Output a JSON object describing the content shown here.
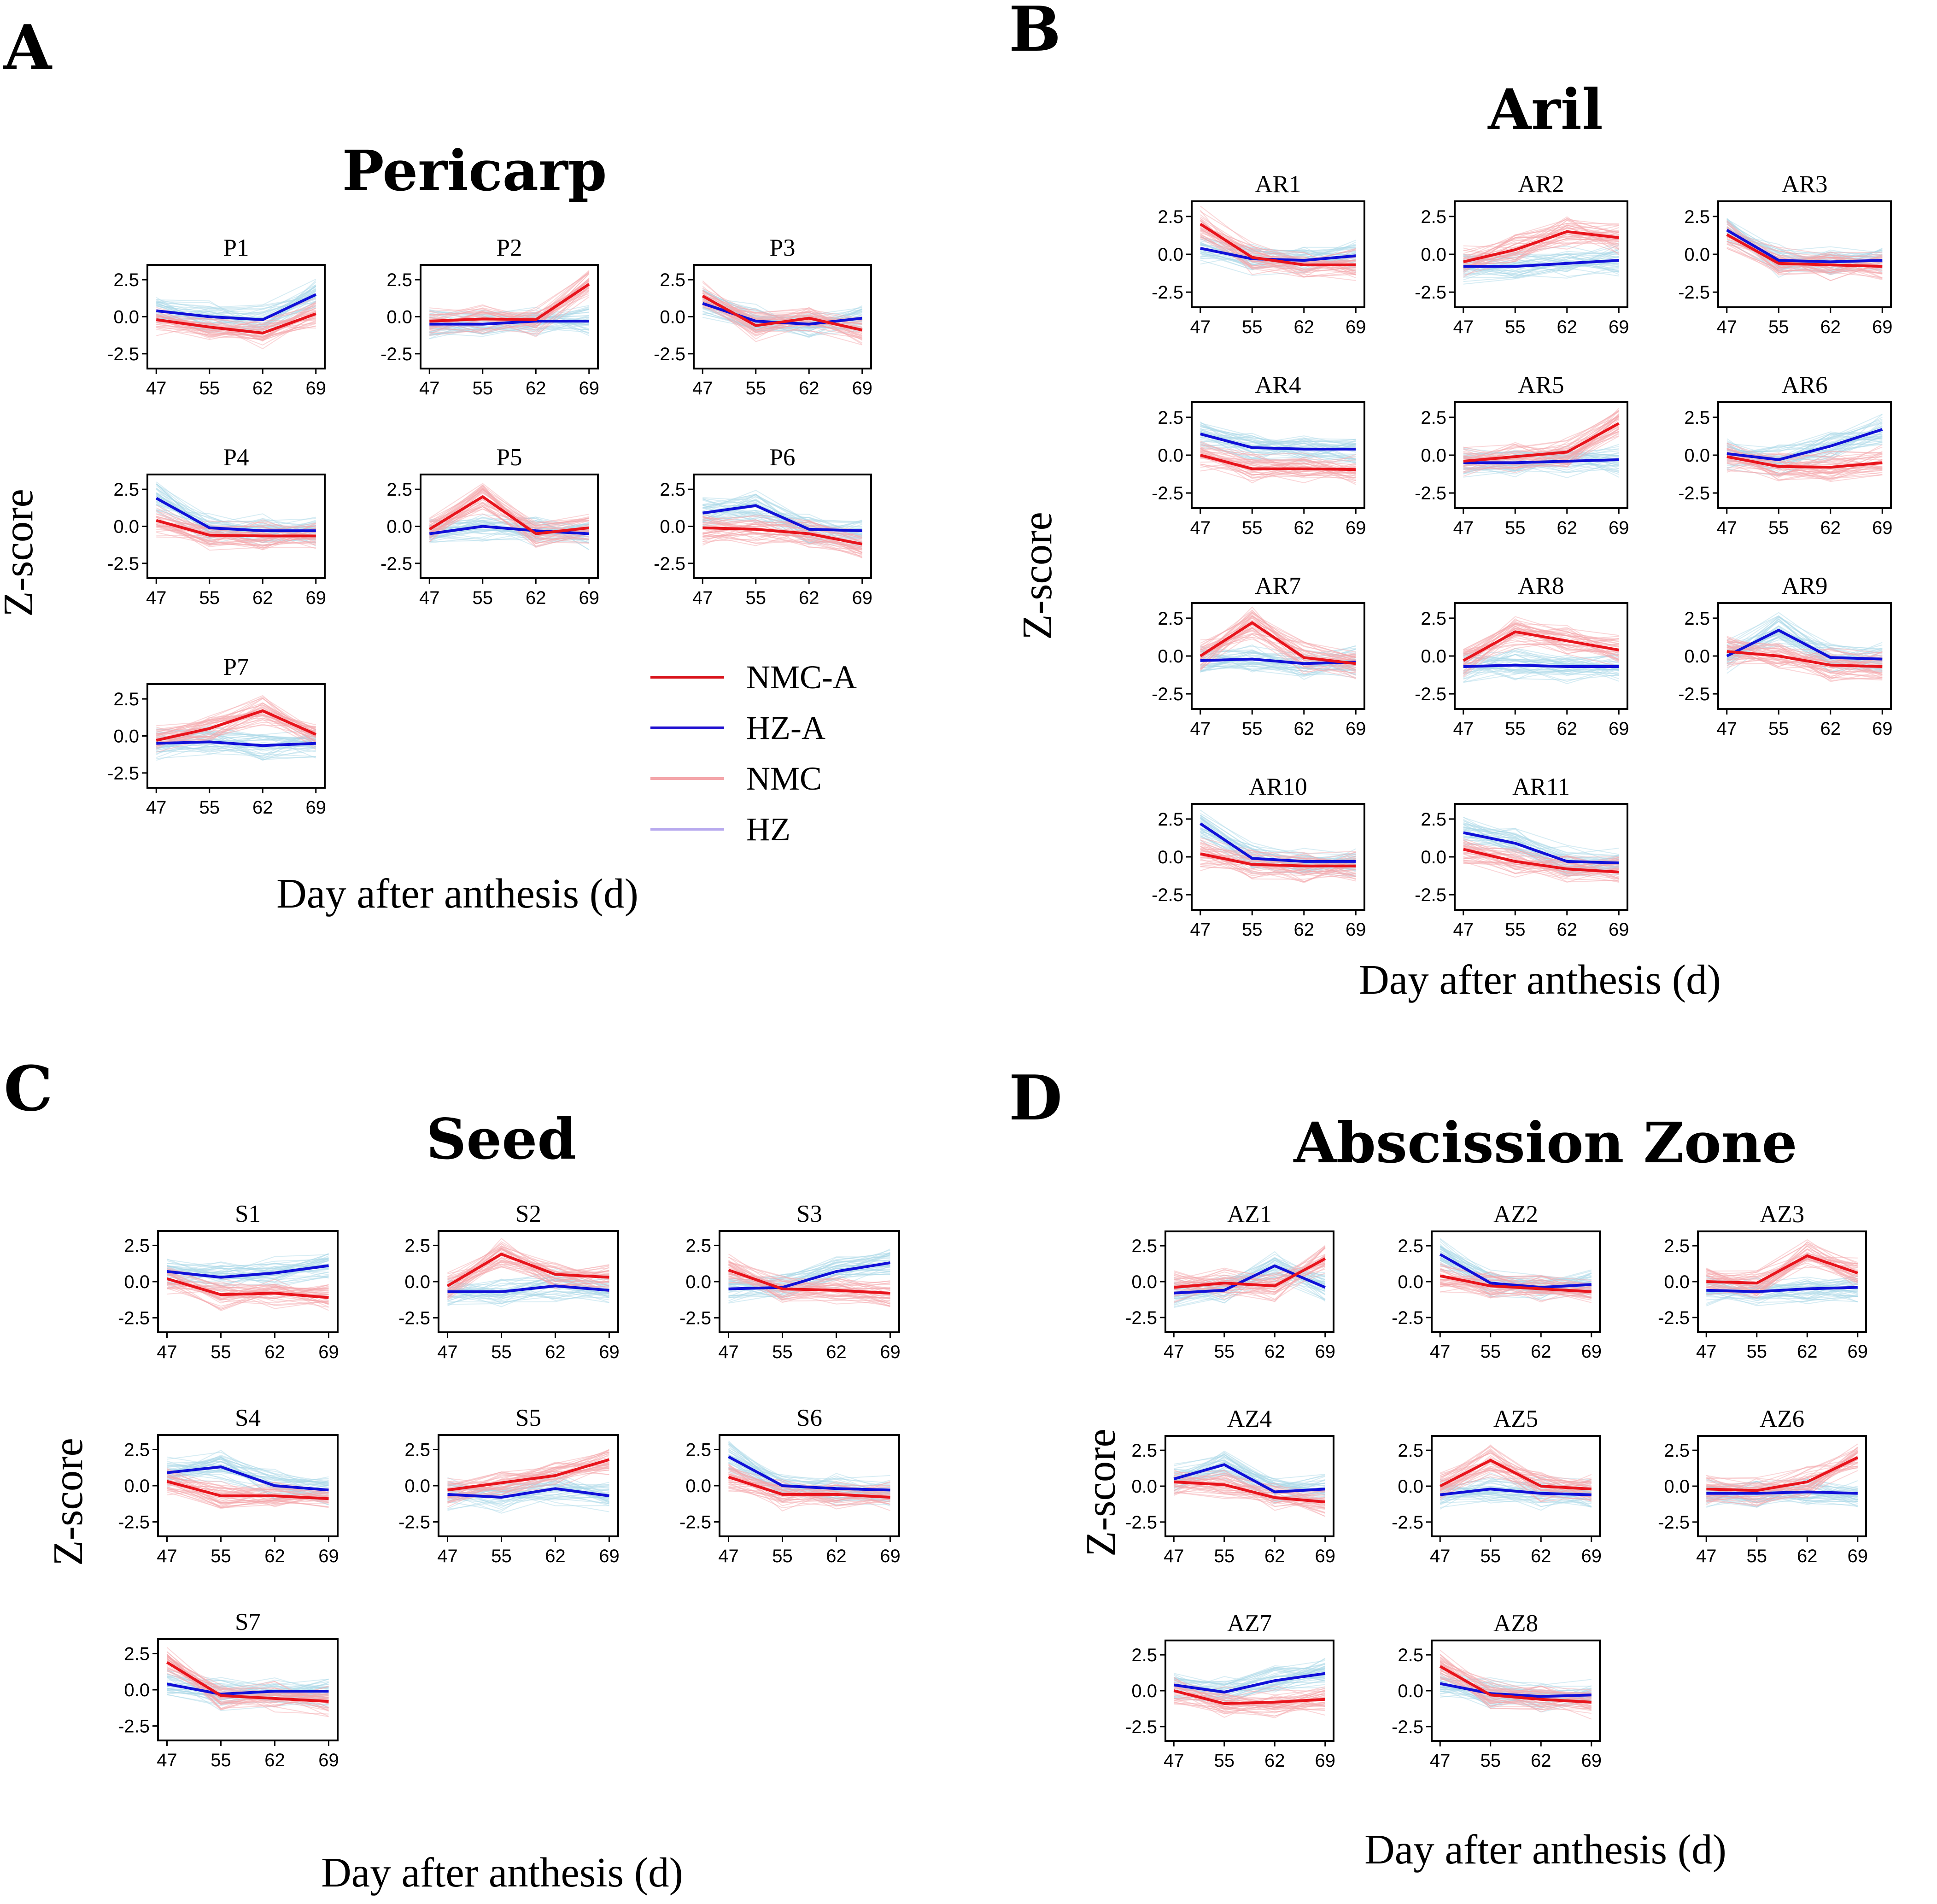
{
  "colors": {
    "nmc_a": "#e8141c",
    "hz_a": "#1010d8",
    "nmc_bundle": "#f4a6aa",
    "hz_bundle": "#a8d6e6",
    "hz_legend": "#b4a6ee"
  },
  "legend": {
    "items": [
      {
        "label": "NMC-A",
        "color": "#d9141c",
        "width": 6
      },
      {
        "label": "HZ-A",
        "color": "#2010d0",
        "width": 6
      },
      {
        "label": "NMC",
        "color": "#f4a6aa",
        "width": 6
      },
      {
        "label": "HZ",
        "color": "#b8aaee",
        "width": 6
      }
    ]
  },
  "panels": [
    {
      "letter": "A",
      "title": "Pericarp",
      "xlabel": "Day after anthesis (d)",
      "ylabel": "Z-score"
    },
    {
      "letter": "B",
      "title": "Aril",
      "xlabel": "Day after anthesis (d)",
      "ylabel": "Z-score"
    },
    {
      "letter": "C",
      "title": "Seed",
      "xlabel": "Day after anthesis (d)",
      "ylabel": "Z-score"
    },
    {
      "letter": "D",
      "title": "Abscission Zone",
      "xlabel": "Day after anthesis (d)",
      "ylabel": "Z-score"
    }
  ],
  "chart_data": {
    "type": "line",
    "x": [
      "47",
      "55",
      "62",
      "69"
    ],
    "ylim": [
      -3.5,
      3.5
    ],
    "yticks": [
      "2.5",
      "0.0",
      "-2.5"
    ],
    "ytick_values": [
      2.5,
      0,
      -2.5
    ],
    "series_names": [
      "NMC-A",
      "HZ-A"
    ],
    "panels": [
      {
        "letter": "A",
        "clusters": [
          {
            "name": "P1",
            "nmc": [
              -0.2,
              -0.7,
              -1.1,
              0.2
            ],
            "hz": [
              0.4,
              0.0,
              -0.2,
              1.5
            ]
          },
          {
            "name": "P2",
            "nmc": [
              -0.3,
              -0.15,
              -0.2,
              2.2
            ],
            "hz": [
              -0.5,
              -0.5,
              -0.3,
              -0.3
            ]
          },
          {
            "name": "P3",
            "nmc": [
              1.4,
              -0.6,
              -0.1,
              -0.9
            ],
            "hz": [
              0.9,
              -0.3,
              -0.5,
              -0.1
            ]
          },
          {
            "name": "P4",
            "nmc": [
              0.4,
              -0.6,
              -0.65,
              -0.65
            ],
            "hz": [
              1.9,
              -0.1,
              -0.3,
              -0.3
            ]
          },
          {
            "name": "P5",
            "nmc": [
              -0.2,
              2.0,
              -0.5,
              -0.1
            ],
            "hz": [
              -0.5,
              0.0,
              -0.3,
              -0.5
            ]
          },
          {
            "name": "P6",
            "nmc": [
              -0.1,
              -0.2,
              -0.5,
              -1.2
            ],
            "hz": [
              0.9,
              1.4,
              -0.2,
              -0.3
            ]
          },
          {
            "name": "P7",
            "nmc": [
              -0.3,
              0.5,
              1.7,
              0.1
            ],
            "hz": [
              -0.5,
              -0.4,
              -0.65,
              -0.5
            ]
          }
        ]
      },
      {
        "letter": "B",
        "clusters": [
          {
            "name": "AR1",
            "nmc": [
              2.0,
              -0.2,
              -0.7,
              -0.7
            ],
            "hz": [
              0.4,
              -0.3,
              -0.4,
              -0.1
            ]
          },
          {
            "name": "AR2",
            "nmc": [
              -0.5,
              0.3,
              1.5,
              1.1
            ],
            "hz": [
              -0.8,
              -0.8,
              -0.6,
              -0.4
            ]
          },
          {
            "name": "AR3",
            "nmc": [
              1.3,
              -0.6,
              -0.7,
              -0.8
            ],
            "hz": [
              1.6,
              -0.4,
              -0.5,
              -0.4
            ]
          },
          {
            "name": "AR4",
            "nmc": [
              0.0,
              -0.9,
              -0.9,
              -0.95
            ],
            "hz": [
              1.4,
              0.5,
              0.4,
              0.4
            ]
          },
          {
            "name": "AR5",
            "nmc": [
              -0.4,
              -0.1,
              0.2,
              2.1
            ],
            "hz": [
              -0.5,
              -0.5,
              -0.4,
              -0.3
            ]
          },
          {
            "name": "AR6",
            "nmc": [
              -0.1,
              -0.75,
              -0.8,
              -0.5
            ],
            "hz": [
              0.1,
              -0.3,
              0.6,
              1.7
            ]
          },
          {
            "name": "AR7",
            "nmc": [
              0.0,
              2.2,
              -0.1,
              -0.5
            ],
            "hz": [
              -0.3,
              -0.2,
              -0.5,
              -0.4
            ]
          },
          {
            "name": "AR8",
            "nmc": [
              -0.3,
              1.6,
              1.0,
              0.4
            ],
            "hz": [
              -0.7,
              -0.6,
              -0.7,
              -0.7
            ]
          },
          {
            "name": "AR9",
            "nmc": [
              0.3,
              0.0,
              -0.6,
              -0.7
            ],
            "hz": [
              0.0,
              1.7,
              -0.1,
              -0.2
            ]
          },
          {
            "name": "AR10",
            "nmc": [
              0.2,
              -0.5,
              -0.6,
              -0.6
            ],
            "hz": [
              2.2,
              -0.1,
              -0.3,
              -0.3
            ]
          },
          {
            "name": "AR11",
            "nmc": [
              0.5,
              -0.3,
              -0.8,
              -1.0
            ],
            "hz": [
              1.6,
              0.9,
              -0.3,
              -0.4
            ]
          }
        ]
      },
      {
        "letter": "C",
        "clusters": [
          {
            "name": "S1",
            "nmc": [
              0.2,
              -0.9,
              -0.8,
              -1.1
            ],
            "hz": [
              0.7,
              0.3,
              0.6,
              1.1
            ]
          },
          {
            "name": "S2",
            "nmc": [
              -0.3,
              1.9,
              0.5,
              0.3
            ],
            "hz": [
              -0.7,
              -0.7,
              -0.3,
              -0.6
            ]
          },
          {
            "name": "S3",
            "nmc": [
              0.8,
              -0.5,
              -0.6,
              -0.8
            ],
            "hz": [
              -0.5,
              -0.4,
              0.7,
              1.3
            ]
          },
          {
            "name": "S4",
            "nmc": [
              0.3,
              -0.7,
              -0.7,
              -0.9
            ],
            "hz": [
              0.9,
              1.3,
              0.0,
              -0.3
            ]
          },
          {
            "name": "S5",
            "nmc": [
              -0.3,
              0.2,
              0.7,
              1.8
            ],
            "hz": [
              -0.6,
              -0.8,
              -0.2,
              -0.7
            ]
          },
          {
            "name": "S6",
            "nmc": [
              0.6,
              -0.6,
              -0.6,
              -0.8
            ],
            "hz": [
              2.0,
              0.0,
              -0.2,
              -0.3
            ]
          },
          {
            "name": "S7",
            "nmc": [
              1.9,
              -0.4,
              -0.6,
              -0.8
            ],
            "hz": [
              0.4,
              -0.3,
              -0.1,
              -0.1
            ]
          }
        ]
      },
      {
        "letter": "D",
        "clusters": [
          {
            "name": "AZ1",
            "nmc": [
              -0.4,
              -0.1,
              -0.3,
              1.6
            ],
            "hz": [
              -0.8,
              -0.6,
              1.1,
              -0.4
            ]
          },
          {
            "name": "AZ2",
            "nmc": [
              0.4,
              -0.3,
              -0.5,
              -0.7
            ],
            "hz": [
              1.9,
              -0.1,
              -0.4,
              -0.2
            ]
          },
          {
            "name": "AZ3",
            "nmc": [
              0.0,
              -0.1,
              1.8,
              0.6
            ],
            "hz": [
              -0.6,
              -0.7,
              -0.5,
              -0.4
            ]
          },
          {
            "name": "AZ4",
            "nmc": [
              0.3,
              0.1,
              -0.8,
              -1.1
            ],
            "hz": [
              0.5,
              1.5,
              -0.4,
              -0.2
            ]
          },
          {
            "name": "AZ5",
            "nmc": [
              0.0,
              1.8,
              0.0,
              -0.2
            ],
            "hz": [
              -0.6,
              -0.2,
              -0.5,
              -0.6
            ]
          },
          {
            "name": "AZ6",
            "nmc": [
              -0.2,
              -0.3,
              0.3,
              2.0
            ],
            "hz": [
              -0.5,
              -0.5,
              -0.4,
              -0.5
            ]
          },
          {
            "name": "AZ7",
            "nmc": [
              0.0,
              -0.9,
              -0.8,
              -0.6
            ],
            "hz": [
              0.4,
              -0.1,
              0.7,
              1.2
            ]
          },
          {
            "name": "AZ8",
            "nmc": [
              1.7,
              -0.3,
              -0.6,
              -0.8
            ],
            "hz": [
              0.5,
              -0.2,
              -0.4,
              -0.3
            ]
          }
        ]
      }
    ]
  }
}
